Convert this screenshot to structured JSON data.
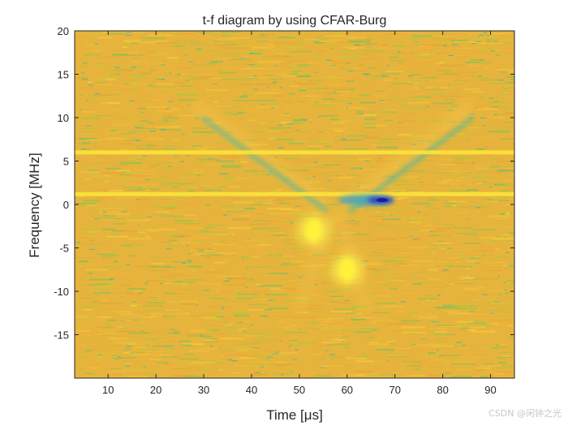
{
  "chart_data": {
    "type": "heatmap",
    "title": "t-f diagram by using CFAR-Burg",
    "xlabel": "Time [μs]",
    "ylabel": "Frequency [MHz]",
    "xlim": [
      3,
      95
    ],
    "ylim": [
      -20,
      20
    ],
    "xticks": [
      10,
      20,
      30,
      40,
      50,
      60,
      70,
      80,
      90
    ],
    "yticks": [
      -15,
      -10,
      -5,
      0,
      5,
      10,
      15,
      20
    ],
    "colormap": "parula",
    "background_level": "yellow-orange noise",
    "horizontal_lines_mhz": [
      6,
      1.2
    ],
    "features": [
      {
        "name": "blue-minimum",
        "time_us": 67,
        "freq_mhz": 0.5
      },
      {
        "name": "bright-blob-1",
        "time_us": 53,
        "freq_mhz": -3
      },
      {
        "name": "bright-blob-2",
        "time_us": 60,
        "freq_mhz": -7.5
      },
      {
        "name": "chirp-left",
        "time_us_range": [
          29,
          55
        ],
        "freq_mhz_range": [
          11,
          0
        ]
      },
      {
        "name": "chirp-right",
        "time_us_range": [
          85,
          60
        ],
        "freq_mhz_range": [
          11,
          0
        ]
      }
    ]
  },
  "watermark": "CSDN @闲钟之光"
}
